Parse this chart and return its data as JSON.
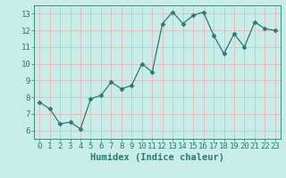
{
  "x": [
    0,
    1,
    2,
    3,
    4,
    5,
    6,
    7,
    8,
    9,
    10,
    11,
    12,
    13,
    14,
    15,
    16,
    17,
    18,
    19,
    20,
    21,
    22,
    23
  ],
  "y": [
    7.7,
    7.3,
    6.4,
    6.5,
    6.1,
    7.9,
    8.1,
    8.9,
    8.5,
    8.7,
    10.0,
    9.5,
    12.4,
    13.1,
    12.4,
    12.9,
    13.1,
    11.7,
    10.6,
    11.8,
    11.0,
    12.5,
    12.1,
    12.0
  ],
  "line_color": "#2d7a70",
  "marker": "D",
  "marker_size": 2.5,
  "bg_color": "#c8ede8",
  "grid_color": "#e8b8b8",
  "xlabel": "Humidex (Indice chaleur)",
  "xlim": [
    -0.5,
    23.5
  ],
  "ylim": [
    5.5,
    13.5
  ],
  "yticks": [
    6,
    7,
    8,
    9,
    10,
    11,
    12,
    13
  ],
  "xticks": [
    0,
    1,
    2,
    3,
    4,
    5,
    6,
    7,
    8,
    9,
    10,
    11,
    12,
    13,
    14,
    15,
    16,
    17,
    18,
    19,
    20,
    21,
    22,
    23
  ],
  "tick_font_size": 6.5,
  "label_font_size": 7.5
}
